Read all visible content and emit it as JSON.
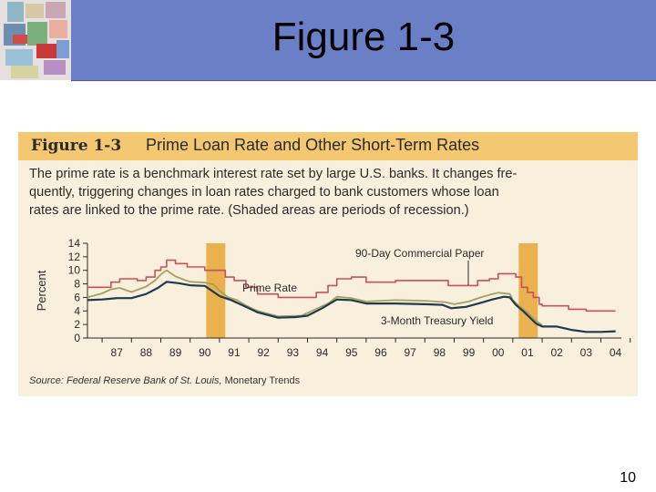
{
  "slide": {
    "title": "Figure 1-3",
    "page_number": "10"
  },
  "figure": {
    "label": "Figure 1-3",
    "title": "Prime Loan Rate and Other Short-Term Rates",
    "caption_lines": [
      "The prime rate is a benchmark interest rate set by large U.S. banks. It changes fre-",
      "quently, triggering changes in loan rates charged to bank customers whose loan",
      "rates are linked to the prime rate. (Shaded areas are periods of recession.)"
    ],
    "source_prefix": "Source: ",
    "source_italic": "Federal Reserve Bank of St. Louis,",
    "source_rest": " Monetary Trends"
  },
  "colors": {
    "header": "#6a7fc6",
    "figure_bg": "#f8f0dc",
    "title_strip": "#f3c870",
    "recession": "#e9b24f",
    "prime": "#c8505a",
    "commercial_paper": "#a6a060",
    "treasury": "#1f3a52"
  },
  "chart_data": {
    "type": "line",
    "ylabel": "Percent",
    "ylim": [
      0,
      14
    ],
    "yticks": [
      0,
      2,
      4,
      6,
      8,
      10,
      12,
      14
    ],
    "xlim": [
      1986.5,
      2004.7
    ],
    "xtick_labels": [
      "87",
      "88",
      "89",
      "90",
      "91",
      "92",
      "93",
      "94",
      "95",
      "96",
      "97",
      "98",
      "99",
      "00",
      "01",
      "02",
      "03",
      "04"
    ],
    "recessions": [
      [
        1990.55,
        1991.2
      ],
      [
        2001.2,
        2001.85
      ]
    ],
    "annotations": {
      "prime": "Prime Rate",
      "commercial_paper": "90-Day Commercial Paper",
      "treasury": "3-Month Treasury Yield"
    },
    "series": [
      {
        "name": "Prime Rate",
        "x": [
          1986.5,
          1987.0,
          1987.3,
          1987.6,
          1987.9,
          1988.2,
          1988.5,
          1988.8,
          1989.0,
          1989.2,
          1989.5,
          1989.9,
          1990.5,
          1990.9,
          1991.2,
          1991.5,
          1991.9,
          1992.3,
          1993.0,
          1994.0,
          1994.3,
          1994.7,
          1995.0,
          1995.5,
          1996.0,
          1997.0,
          1998.0,
          1998.8,
          1999.5,
          1999.8,
          2000.2,
          2000.5,
          2000.9,
          2001.1,
          2001.3,
          2001.5,
          2001.7,
          2001.9,
          2002.0,
          2002.9,
          2003.5,
          2004.5
        ],
        "values": [
          7.5,
          7.5,
          8.25,
          8.75,
          8.75,
          8.5,
          9.0,
          10.0,
          10.5,
          11.5,
          11.0,
          10.5,
          10.0,
          10.0,
          9.0,
          8.5,
          7.5,
          6.5,
          6.0,
          6.0,
          6.75,
          7.75,
          8.75,
          9.0,
          8.25,
          8.5,
          8.5,
          7.75,
          7.75,
          8.5,
          8.75,
          9.5,
          9.5,
          9.0,
          7.5,
          6.75,
          6.0,
          5.0,
          4.75,
          4.25,
          4.0,
          4.0
        ]
      },
      {
        "name": "90-Day Commercial Paper",
        "x": [
          1986.5,
          1987.0,
          1987.3,
          1987.6,
          1988.0,
          1988.5,
          1988.8,
          1989.0,
          1989.2,
          1989.5,
          1989.8,
          1990.0,
          1990.5,
          1990.8,
          1991.0,
          1991.3,
          1991.6,
          1991.9,
          1992.3,
          1993.0,
          1993.8,
          1994.3,
          1994.7,
          1995.0,
          1995.5,
          1996.0,
          1997.0,
          1998.0,
          1998.7,
          1999.0,
          1999.5,
          1999.9,
          2000.3,
          2000.5,
          2000.9,
          2001.0,
          2001.2,
          2001.5,
          2001.8,
          2002.0
        ],
        "values": [
          6.0,
          6.6,
          7.2,
          7.4,
          6.8,
          7.6,
          8.5,
          9.4,
          10.0,
          9.1,
          8.6,
          8.3,
          8.2,
          7.9,
          7.0,
          6.0,
          5.6,
          4.8,
          4.0,
          3.2,
          3.3,
          4.3,
          5.1,
          6.1,
          5.9,
          5.4,
          5.6,
          5.5,
          5.3,
          5.0,
          5.4,
          6.0,
          6.5,
          6.7,
          6.5,
          5.6,
          4.8,
          3.8,
          2.5,
          1.9
        ]
      },
      {
        "name": "3-Month Treasury Yield",
        "x": [
          1986.5,
          1987.0,
          1987.5,
          1988.0,
          1988.5,
          1988.9,
          1989.2,
          1989.6,
          1990.0,
          1990.5,
          1991.0,
          1991.4,
          1991.8,
          1992.3,
          1993.0,
          1993.6,
          1994.0,
          1994.5,
          1995.0,
          1995.5,
          1996.0,
          1997.0,
          1998.0,
          1998.6,
          1998.9,
          1999.4,
          1999.9,
          2000.3,
          2000.7,
          2000.9,
          2001.1,
          2001.4,
          2001.8,
          2002.0,
          2002.5,
          2003.0,
          2003.5,
          2004.0,
          2004.5
        ],
        "values": [
          5.6,
          5.7,
          5.9,
          5.9,
          6.5,
          7.4,
          8.3,
          8.1,
          7.8,
          7.7,
          6.2,
          5.6,
          4.8,
          3.8,
          3.0,
          3.1,
          3.3,
          4.4,
          5.7,
          5.6,
          5.1,
          5.1,
          5.0,
          4.9,
          4.4,
          4.6,
          5.2,
          5.7,
          6.1,
          6.0,
          4.9,
          3.8,
          2.1,
          1.7,
          1.7,
          1.2,
          0.9,
          0.9,
          1.0
        ]
      }
    ]
  }
}
